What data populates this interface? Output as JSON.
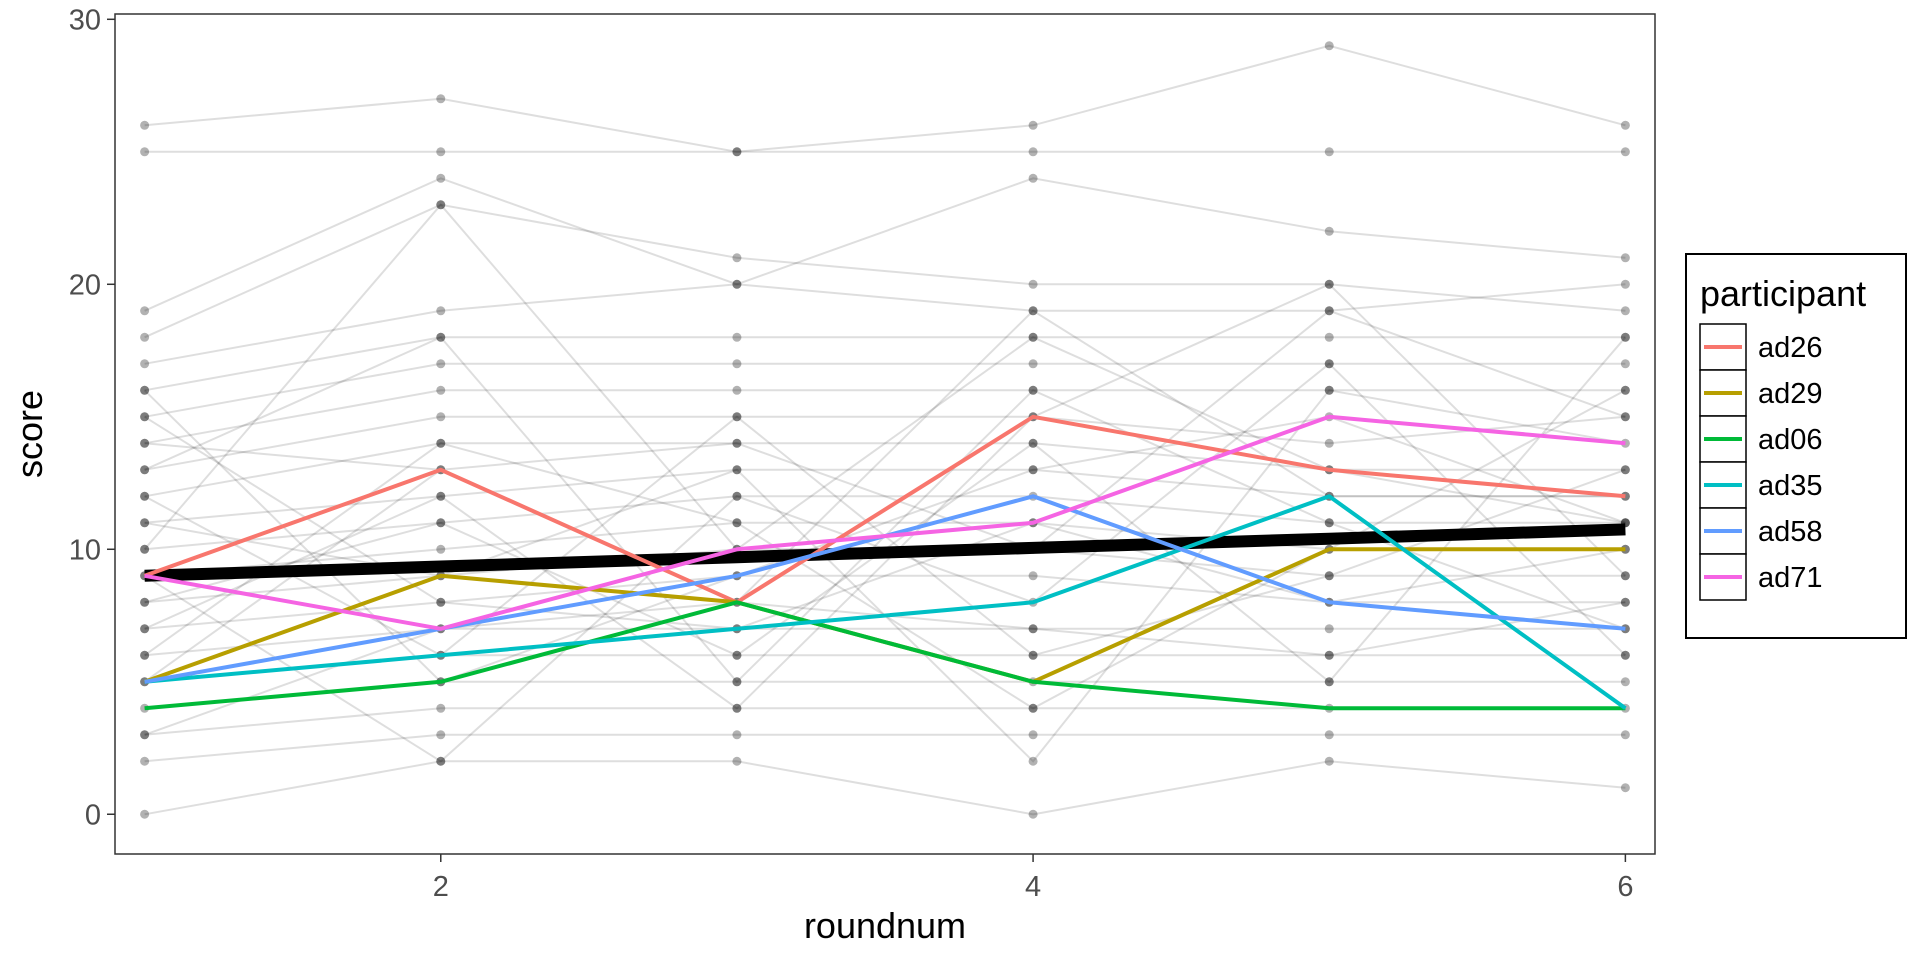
{
  "chart_data": {
    "type": "line",
    "xlabel": "roundnum",
    "ylabel": "score",
    "xlim": [
      0.9,
      6.1
    ],
    "ylim": [
      -1.5,
      30.2
    ],
    "x_ticks": [
      2,
      4,
      6
    ],
    "x_tick_labels": [
      "2",
      "4",
      "6"
    ],
    "y_ticks": [
      0,
      10,
      20,
      30
    ],
    "y_tick_labels": [
      "0",
      "10",
      "20",
      "30"
    ],
    "grid": false,
    "legend": {
      "title": "participant",
      "placement": "right",
      "entries": [
        "ad26",
        "ad29",
        "ad06",
        "ad35",
        "ad58",
        "ad71"
      ]
    },
    "x": [
      1,
      2,
      3,
      4,
      5,
      6
    ],
    "background_series": [
      [
        26,
        27,
        25,
        26,
        29,
        26
      ],
      [
        25,
        25,
        25,
        25,
        25,
        25
      ],
      [
        19,
        24,
        20,
        24,
        22,
        21
      ],
      [
        18,
        23,
        21,
        20,
        20,
        19
      ],
      [
        17,
        19,
        20,
        19,
        19,
        20
      ],
      [
        16,
        18,
        18,
        18,
        18,
        18
      ],
      [
        15,
        17,
        17,
        17,
        17,
        17
      ],
      [
        14,
        16,
        16,
        16,
        16,
        16
      ],
      [
        13,
        15,
        15,
        15,
        14,
        15
      ],
      [
        12,
        14,
        14,
        14,
        13,
        13
      ],
      [
        11,
        12,
        13,
        13,
        12,
        12
      ],
      [
        10,
        11,
        12,
        12,
        11,
        11
      ],
      [
        9,
        10,
        11,
        11,
        10,
        10
      ],
      [
        8,
        9,
        10,
        10,
        9,
        9
      ],
      [
        7,
        8,
        9,
        9,
        8,
        8
      ],
      [
        6,
        7,
        7,
        7,
        7,
        7
      ],
      [
        5,
        6,
        6,
        6,
        6,
        6
      ],
      [
        4,
        5,
        5,
        5,
        5,
        5
      ],
      [
        3,
        4,
        4,
        4,
        4,
        4
      ],
      [
        2,
        3,
        3,
        3,
        3,
        3
      ],
      [
        0,
        2,
        2,
        0,
        2,
        1
      ],
      [
        14,
        13,
        8,
        19,
        12,
        12
      ],
      [
        10,
        23,
        10,
        18,
        13,
        11
      ],
      [
        12,
        6,
        15,
        6,
        9,
        13
      ],
      [
        16,
        5,
        9,
        13,
        15,
        11
      ],
      [
        7,
        12,
        4,
        15,
        20,
        9
      ],
      [
        11,
        9,
        13,
        2,
        16,
        14
      ],
      [
        13,
        18,
        5,
        16,
        11,
        7
      ],
      [
        9,
        2,
        12,
        8,
        17,
        6
      ],
      [
        6,
        14,
        11,
        4,
        10,
        16
      ],
      [
        8,
        11,
        6,
        14,
        5,
        18
      ],
      [
        3,
        7,
        8,
        7,
        6,
        8
      ],
      [
        5,
        13,
        14,
        10,
        19,
        15
      ],
      [
        15,
        8,
        7,
        11,
        8,
        10
      ]
    ],
    "series": [
      {
        "name": "ad26",
        "color": "#f8766d",
        "values": [
          9,
          13,
          8,
          15,
          13,
          12
        ]
      },
      {
        "name": "ad29",
        "color": "#b79f00",
        "values": [
          5,
          9,
          8,
          5,
          10,
          10
        ]
      },
      {
        "name": "ad06",
        "color": "#00ba38",
        "values": [
          4,
          5,
          8,
          5,
          4,
          4
        ]
      },
      {
        "name": "ad35",
        "color": "#00bfc4",
        "values": [
          5,
          6,
          7,
          8,
          12,
          4
        ]
      },
      {
        "name": "ad58",
        "color": "#619cff",
        "values": [
          5,
          7,
          9,
          12,
          8,
          7
        ]
      },
      {
        "name": "ad71",
        "color": "#f564e3",
        "values": [
          9,
          7,
          10,
          11,
          15,
          14
        ]
      }
    ],
    "trend": {
      "color": "#000000",
      "values": [
        9.0,
        9.35,
        9.7,
        10.05,
        10.4,
        10.75
      ]
    }
  }
}
